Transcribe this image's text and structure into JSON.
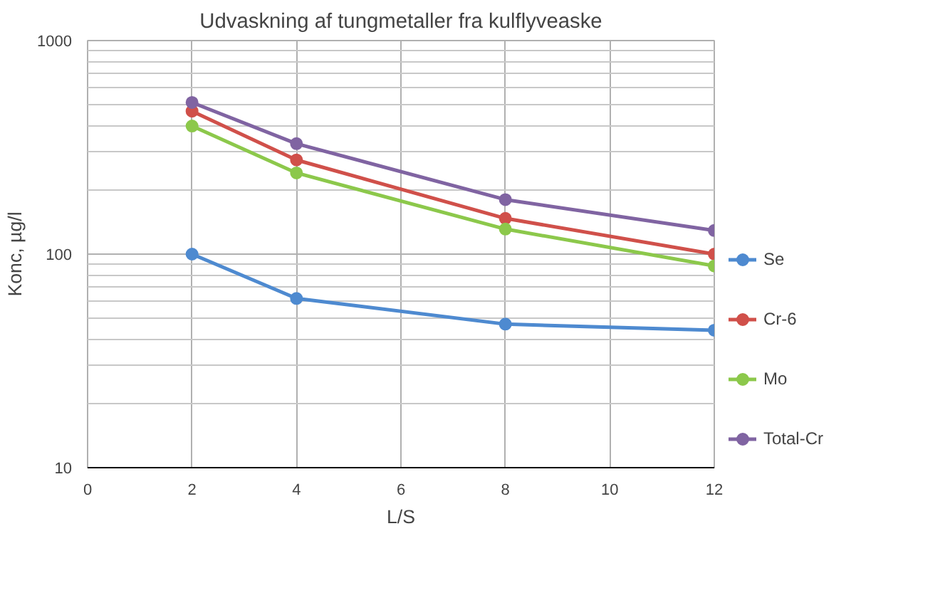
{
  "chart_data": {
    "type": "line",
    "title": "Udvaskning af tungmetaller fra kulflyveaske",
    "xlabel": "L/S",
    "ylabel": "Konc, µg/l",
    "x": [
      2,
      4,
      8,
      12
    ],
    "series": [
      {
        "name": "Se",
        "color": "#4e8ad0",
        "values": [
          100,
          62,
          47,
          44
        ]
      },
      {
        "name": "Cr-6",
        "color": "#d0504a",
        "values": [
          467,
          276,
          147,
          100
        ]
      },
      {
        "name": "Mo",
        "color": "#8cc84b",
        "values": [
          398,
          240,
          131,
          88
        ]
      },
      {
        "name": "Total-Cr",
        "color": "#8064a2",
        "values": [
          513,
          329,
          180,
          129
        ]
      }
    ],
    "xlim": [
      0,
      12
    ],
    "xticks": [
      0,
      2,
      4,
      6,
      8,
      10,
      12
    ],
    "ylim": [
      10,
      1000
    ],
    "yticks": [
      10,
      100,
      1000
    ],
    "log": "y",
    "grid": true,
    "legend": "right",
    "marker": "circle",
    "line_style": "solid"
  }
}
